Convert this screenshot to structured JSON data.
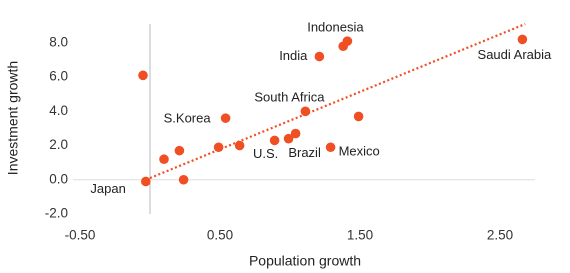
{
  "chart_data": {
    "type": "scatter",
    "x_label": "Population growth",
    "y_label": "Investment growth",
    "xlim": [
      -0.55,
      2.75
    ],
    "ylim": [
      -2,
      9.1
    ],
    "xticks": [
      {
        "value": -0.5,
        "label": "-0.50"
      },
      {
        "value": 0.5,
        "label": "0.50"
      },
      {
        "value": 1.5,
        "label": "1.50"
      },
      {
        "value": 2.5,
        "label": "2.50"
      }
    ],
    "yticks": [
      {
        "value": -2,
        "label": "-2.0"
      },
      {
        "value": 0,
        "label": "0.0"
      },
      {
        "value": 2,
        "label": "2.0"
      },
      {
        "value": 4,
        "label": "4.0"
      },
      {
        "value": 6,
        "label": "6.0"
      },
      {
        "value": 8,
        "label": "8.0"
      }
    ],
    "series": [
      {
        "color": "#f04e23",
        "x": [
          -0.05,
          -0.03,
          0.24,
          0.1,
          0.21,
          0.49,
          0.54,
          0.64,
          0.89,
          0.99,
          1.04,
          1.11,
          1.21,
          1.29,
          1.38,
          1.41,
          1.49,
          2.66
        ],
        "values": [
          6.1,
          -0.1,
          0,
          1.2,
          1.7,
          1.9,
          3.6,
          2.0,
          2.3,
          2.4,
          2.7,
          4.0,
          7.2,
          1.9,
          7.8,
          8.1,
          3.7,
          8.2
        ],
        "labels": [
          null,
          "Japan",
          null,
          null,
          null,
          null,
          "S.Korea",
          null,
          "U.S.",
          null,
          "Brazil",
          "South Africa",
          "India",
          "Mexico",
          null,
          "Indonesia",
          null,
          "Saudi Arabia"
        ]
      }
    ],
    "trendline": {
      "color": "#f04e23",
      "x": [
        0,
        2.68
      ],
      "values": [
        0.1,
        9.1
      ]
    }
  }
}
